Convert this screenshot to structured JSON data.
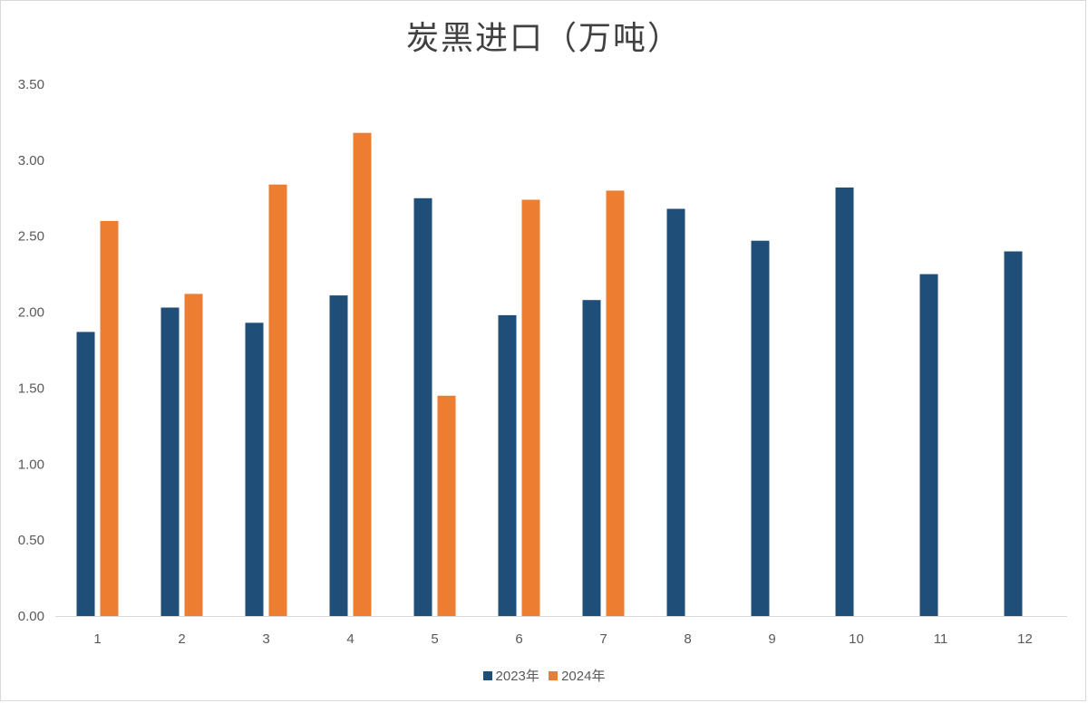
{
  "chart_data": {
    "type": "bar",
    "title": "炭黑进口（万吨）",
    "categories": [
      "1",
      "2",
      "3",
      "4",
      "5",
      "6",
      "7",
      "8",
      "9",
      "10",
      "11",
      "12"
    ],
    "series": [
      {
        "name": "2023年",
        "color": "#1f4e79",
        "values": [
          1.87,
          2.03,
          1.93,
          2.11,
          2.75,
          1.98,
          2.08,
          2.68,
          2.47,
          2.82,
          2.25,
          2.4
        ]
      },
      {
        "name": "2024年",
        "color": "#ed7d31",
        "values": [
          2.6,
          2.12,
          2.84,
          3.18,
          1.45,
          2.74,
          2.8,
          null,
          null,
          null,
          null,
          null
        ]
      }
    ],
    "ylim": [
      0,
      3.5
    ],
    "yticks": [
      "0.00",
      "0.50",
      "1.00",
      "1.50",
      "2.00",
      "2.50",
      "3.00",
      "3.50"
    ],
    "grid": false,
    "legend_position": "bottom"
  }
}
